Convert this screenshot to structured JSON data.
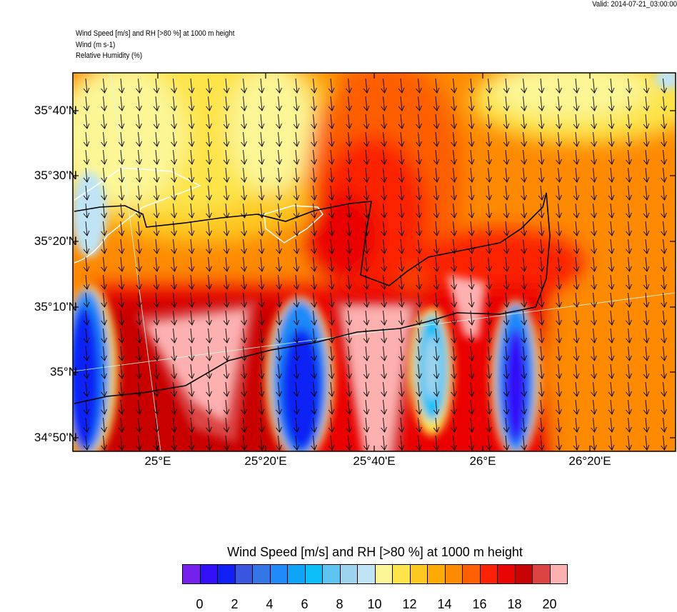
{
  "header": {
    "valid": "Valid: 2014-07-21_03:00:00",
    "line1": "Wind Speed [m/s] and RH [>80 %] at 1000 m height",
    "line2": "Wind   (m s-1)",
    "line3": "Relative Humidity    (%)"
  },
  "chart_data": {
    "type": "heatmap",
    "title": "Wind Speed [m/s] and RH [>80 %] at 1000 m height",
    "lat_ticks": [
      "35°40'N",
      "35°30'N",
      "35°20'N",
      "35°10'N",
      "35°N",
      "34°50'N"
    ],
    "lon_ticks": [
      "25°E",
      "25°20'E",
      "25°40'E",
      "26°E",
      "26°20'E"
    ],
    "colorbar": {
      "title": "Wind Speed [m/s] and RH [>80 %] at 1000 m height",
      "labels": [
        "0",
        "2",
        "4",
        "6",
        "8",
        "10",
        "12",
        "14",
        "16",
        "18",
        "20"
      ],
      "colors": [
        "#7620ee",
        "#3310f8",
        "#1020f4",
        "#3a55e0",
        "#3476e6",
        "#1f8af8",
        "#0ea4f8",
        "#0dbff9",
        "#5ec4f2",
        "#9dd3ec",
        "#c0e4f5",
        "#fcf696",
        "#fde44a",
        "#fdc921",
        "#fdaa03",
        "#fd8a02",
        "#fd5f02",
        "#fb2206",
        "#ea0505",
        "#c90303",
        "#dc4444",
        "#fdb0b0"
      ]
    },
    "wind_direction": "from north (arrows pointing south)",
    "rh_contour": "80"
  }
}
